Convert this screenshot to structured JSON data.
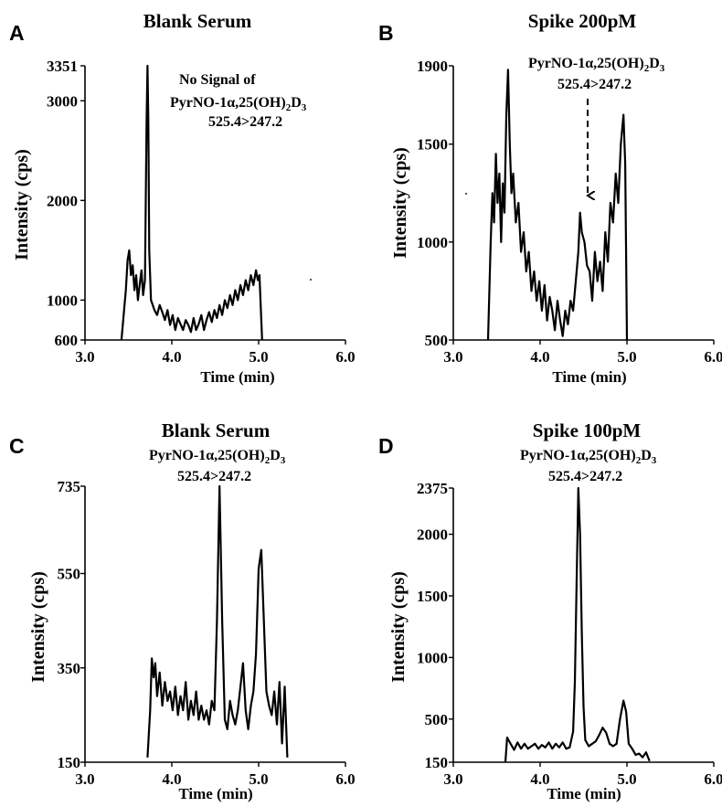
{
  "chart_data": [
    {
      "id": "A",
      "type": "line",
      "panel_label": "A",
      "title": "Blank Serum",
      "xlabel": "Time (min)",
      "ylabel": "Intensity (cps)",
      "xlim": [
        3.0,
        6.0
      ],
      "ylim": [
        600,
        3351
      ],
      "xticks": [
        "3.0",
        "4.0",
        "5.0",
        "6.0"
      ],
      "yticks": [
        {
          "value": 3351,
          "label": "3351"
        },
        {
          "value": 3000,
          "label": "3000"
        },
        {
          "value": 2000,
          "label": "2000"
        },
        {
          "value": 1000,
          "label": "1000"
        },
        {
          "value": 600,
          "label": "600"
        }
      ],
      "annotation": {
        "lines": [
          "No Signal of",
          "PyrNO-1α,25(OH)",
          "525.4>247.2"
        ],
        "subscripts": [
          "2",
          "3"
        ],
        "suffix": "D"
      },
      "series": [
        {
          "x": [
            3.42,
            3.47,
            3.49,
            3.51,
            3.53,
            3.55,
            3.57,
            3.59,
            3.61,
            3.63,
            3.65,
            3.67,
            3.69,
            3.71,
            3.72,
            3.73,
            3.74,
            3.76,
            3.78,
            3.8,
            3.83,
            3.86,
            3.89,
            3.92,
            3.95,
            3.98,
            4.01,
            4.04,
            4.07,
            4.1,
            4.13,
            4.16,
            4.19,
            4.22,
            4.25,
            4.28,
            4.31,
            4.34,
            4.37,
            4.4,
            4.43,
            4.46,
            4.49,
            4.52,
            4.55,
            4.58,
            4.61,
            4.64,
            4.67,
            4.7,
            4.73,
            4.76,
            4.79,
            4.82,
            4.85,
            4.88,
            4.91,
            4.94,
            4.97,
            4.99,
            5.01,
            5.04
          ],
          "y": [
            600,
            1100,
            1400,
            1500,
            1250,
            1350,
            1100,
            1250,
            1000,
            1150,
            1300,
            1050,
            1200,
            2800,
            3351,
            2800,
            1500,
            1000,
            950,
            900,
            850,
            950,
            880,
            800,
            900,
            750,
            850,
            700,
            820,
            760,
            700,
            800,
            750,
            680,
            820,
            700,
            760,
            850,
            700,
            800,
            880,
            780,
            900,
            820,
            950,
            850,
            1000,
            920,
            1050,
            950,
            1100,
            1000,
            1150,
            1050,
            1200,
            1100,
            1250,
            1150,
            1300,
            1200,
            1250,
            600
          ]
        }
      ]
    },
    {
      "id": "B",
      "type": "line",
      "panel_label": "B",
      "title": "Spike 200pM",
      "xlabel": "Time (min)",
      "ylabel": "Intensity (cps)",
      "xlim": [
        3.0,
        6.0
      ],
      "ylim": [
        500,
        1900
      ],
      "xticks": [
        "3.0",
        "4.0",
        "5.0",
        "6.0"
      ],
      "yticks": [
        {
          "value": 1900,
          "label": "1900"
        },
        {
          "value": 1500,
          "label": "1500"
        },
        {
          "value": 1000,
          "label": "1000"
        },
        {
          "value": 500,
          "label": "500"
        }
      ],
      "annotation": {
        "lines": [
          "PyrNO-1α,25(OH)",
          "525.4>247.2"
        ],
        "subscripts": [
          "2",
          "3"
        ],
        "suffix": "D"
      },
      "series": [
        {
          "x": [
            3.4,
            3.43,
            3.45,
            3.47,
            3.49,
            3.51,
            3.53,
            3.55,
            3.57,
            3.59,
            3.61,
            3.63,
            3.65,
            3.67,
            3.69,
            3.72,
            3.75,
            3.78,
            3.81,
            3.84,
            3.87,
            3.9,
            3.93,
            3.96,
            3.99,
            4.02,
            4.05,
            4.08,
            4.11,
            4.14,
            4.17,
            4.2,
            4.23,
            4.26,
            4.29,
            4.32,
            4.35,
            4.38,
            4.41,
            4.44,
            4.46,
            4.48,
            4.51,
            4.54,
            4.57,
            4.6,
            4.63,
            4.66,
            4.69,
            4.72,
            4.75,
            4.78,
            4.81,
            4.84,
            4.87,
            4.9,
            4.93,
            4.96,
            4.98,
            5.0
          ],
          "y": [
            500,
            1000,
            1250,
            1100,
            1450,
            1200,
            1350,
            1000,
            1300,
            1150,
            1650,
            1880,
            1500,
            1250,
            1350,
            1100,
            1200,
            950,
            1050,
            850,
            950,
            750,
            850,
            700,
            800,
            650,
            780,
            600,
            720,
            650,
            550,
            700,
            600,
            520,
            650,
            580,
            700,
            650,
            800,
            950,
            1150,
            1050,
            1000,
            880,
            850,
            700,
            950,
            800,
            900,
            750,
            1050,
            900,
            1200,
            1100,
            1350,
            1200,
            1500,
            1650,
            1400,
            500
          ]
        }
      ]
    },
    {
      "id": "C",
      "type": "line",
      "panel_label": "C",
      "title": "Blank Serum",
      "xlabel": "Time (min)",
      "ylabel": "Intensity (cps)",
      "xlim": [
        3.0,
        6.0
      ],
      "ylim": [
        150,
        735
      ],
      "xticks": [
        "3.0",
        "4.0",
        "5.0",
        "6.0"
      ],
      "yticks": [
        {
          "value": 735,
          "label": "735"
        },
        {
          "value": 550,
          "label": "550"
        },
        {
          "value": 350,
          "label": "350"
        },
        {
          "value": 150,
          "label": "150"
        }
      ],
      "annotation": {
        "lines": [
          "PyrNO-1α,25(OH)",
          "525.4>247.2"
        ],
        "subscripts": [
          "2",
          "3"
        ],
        "suffix": "D"
      },
      "series": [
        {
          "x": [
            3.72,
            3.75,
            3.77,
            3.79,
            3.81,
            3.83,
            3.86,
            3.89,
            3.92,
            3.95,
            3.98,
            4.01,
            4.04,
            4.07,
            4.1,
            4.13,
            4.16,
            4.19,
            4.22,
            4.25,
            4.28,
            4.31,
            4.34,
            4.37,
            4.4,
            4.43,
            4.46,
            4.49,
            4.52,
            4.55,
            4.58,
            4.61,
            4.64,
            4.67,
            4.7,
            4.73,
            4.76,
            4.79,
            4.82,
            4.85,
            4.88,
            4.91,
            4.94,
            4.97,
            5.0,
            5.03,
            5.06,
            5.09,
            5.12,
            5.15,
            5.18,
            5.21,
            5.24,
            5.27,
            5.3,
            5.33
          ],
          "y": [
            160,
            260,
            370,
            330,
            360,
            290,
            340,
            270,
            320,
            280,
            300,
            260,
            310,
            250,
            290,
            260,
            320,
            240,
            280,
            250,
            300,
            240,
            270,
            240,
            260,
            230,
            280,
            260,
            450,
            735,
            450,
            240,
            220,
            280,
            250,
            230,
            260,
            310,
            360,
            260,
            220,
            270,
            300,
            380,
            560,
            600,
            450,
            300,
            270,
            250,
            300,
            230,
            320,
            190,
            310,
            160
          ]
        }
      ]
    },
    {
      "id": "D",
      "type": "line",
      "panel_label": "D",
      "title": "Spike 100pM",
      "xlabel": "Time (min)",
      "ylabel": "Intensity (cps)",
      "xlim": [
        3.0,
        6.0
      ],
      "ylim": [
        150,
        2375
      ],
      "xticks": [
        "3.0",
        "4.0",
        "5.0",
        "6.0"
      ],
      "yticks": [
        {
          "value": 2375,
          "label": "2375"
        },
        {
          "value": 2000,
          "label": "2000"
        },
        {
          "value": 1500,
          "label": "1500"
        },
        {
          "value": 1000,
          "label": "1000"
        },
        {
          "value": 500,
          "label": "500"
        },
        {
          "value": 150,
          "label": "150"
        }
      ],
      "annotation": {
        "lines": [
          "PyrNO-1α,25(OH)",
          "525.4>247.2"
        ],
        "subscripts": [
          "2",
          "3"
        ],
        "suffix": "D"
      },
      "series": [
        {
          "x": [
            3.6,
            3.62,
            3.66,
            3.7,
            3.74,
            3.78,
            3.82,
            3.86,
            3.9,
            3.94,
            3.98,
            4.02,
            4.06,
            4.1,
            4.14,
            4.18,
            4.22,
            4.26,
            4.3,
            4.34,
            4.38,
            4.4,
            4.42,
            4.44,
            4.46,
            4.48,
            4.5,
            4.52,
            4.56,
            4.6,
            4.64,
            4.68,
            4.72,
            4.76,
            4.8,
            4.84,
            4.88,
            4.92,
            4.96,
            4.99,
            5.02,
            5.06,
            5.1,
            5.14,
            5.18,
            5.22,
            5.26
          ],
          "y": [
            150,
            350,
            300,
            250,
            310,
            260,
            300,
            260,
            280,
            300,
            260,
            290,
            270,
            310,
            260,
            300,
            270,
            310,
            260,
            270,
            400,
            800,
            1600,
            2375,
            2000,
            1200,
            600,
            330,
            280,
            300,
            320,
            370,
            430,
            390,
            300,
            280,
            300,
            500,
            650,
            560,
            300,
            260,
            210,
            220,
            190,
            230,
            160
          ]
        }
      ]
    }
  ]
}
